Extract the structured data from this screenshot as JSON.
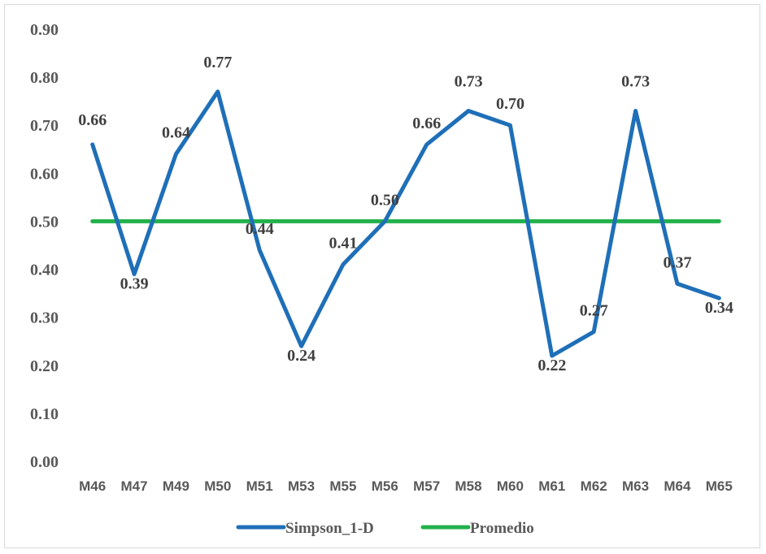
{
  "chart_data": {
    "type": "line",
    "categories": [
      "M46",
      "M47",
      "M49",
      "M50",
      "M51",
      "M53",
      "M55",
      "M56",
      "M57",
      "M58",
      "M60",
      "M61",
      "M62",
      "M63",
      "M64",
      "M65"
    ],
    "series": [
      {
        "name": "Simpson_1-D",
        "color": "#1f6fb8",
        "values": [
          0.66,
          0.39,
          0.64,
          0.77,
          0.44,
          0.24,
          0.41,
          0.5,
          0.66,
          0.73,
          0.7,
          0.22,
          0.27,
          0.73,
          0.37,
          0.34
        ],
        "labels": [
          "0.66",
          "0.39",
          "0.64",
          "0.77",
          "0.44",
          "0.24",
          "0.41",
          "0.50",
          "0.66",
          "0.73",
          "0.70",
          "0.22",
          "0.27",
          "0.73",
          "0.37",
          "0.34"
        ]
      },
      {
        "name": "Promedio",
        "color": "#22b14c",
        "values": [
          0.5,
          0.5,
          0.5,
          0.5,
          0.5,
          0.5,
          0.5,
          0.5,
          0.5,
          0.5,
          0.5,
          0.5,
          0.5,
          0.5,
          0.5,
          0.5
        ]
      }
    ],
    "yticks": [
      "0.00",
      "0.10",
      "0.20",
      "0.30",
      "0.40",
      "0.50",
      "0.60",
      "0.70",
      "0.80",
      "0.90"
    ],
    "ylim": [
      0,
      0.9
    ],
    "grid": false,
    "legend": "bottom"
  }
}
